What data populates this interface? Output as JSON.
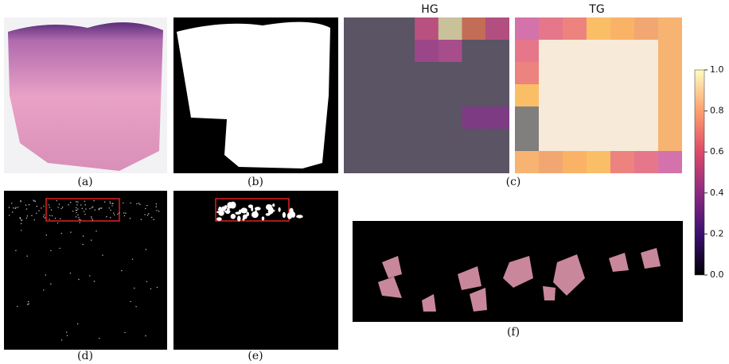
{
  "panels": {
    "heatmap_titles": [
      "HG",
      "TG"
    ],
    "captions": [
      "(a)",
      "(b)",
      "(c)",
      "(d)",
      "(e)",
      "(f)"
    ]
  },
  "colorbar": {
    "ticks": [
      {
        "value": 0,
        "label": "0.0"
      },
      {
        "value": 0.2,
        "label": "0.2"
      },
      {
        "value": 0.4,
        "label": "0.4"
      },
      {
        "value": 0.6,
        "label": "0.6"
      },
      {
        "value": 0.8,
        "label": "0.8"
      },
      {
        "value": 1,
        "label": "1.0"
      }
    ]
  }
}
